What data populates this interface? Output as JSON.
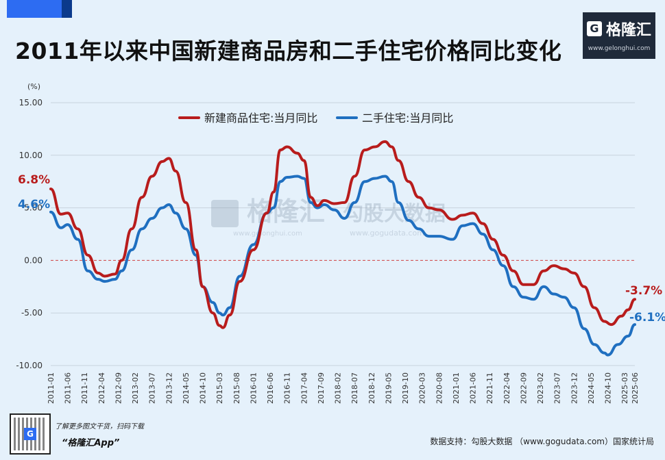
{
  "title": "2011年以来中国新建商品房和二手住宅价格同比变化",
  "logo": {
    "name": "格隆汇",
    "url": "www.gelonghui.com"
  },
  "footer": {
    "tagline": "了解更多图文干货，扫码下载",
    "app": "“格隆汇App”",
    "source": "数据支持：勾股大数据 （www.gogudata.com）国家统计局"
  },
  "watermark": {
    "brand": "格隆汇",
    "brand_url": "www.gelonghui.com",
    "data": "勾股大数据",
    "data_url": "www.gogudata.com"
  },
  "colors": {
    "new_home": "#b81c1c",
    "second_hand": "#1f6fc0",
    "zero_line": "#d04040"
  },
  "chart_data": {
    "type": "line",
    "unit_label": "(%)",
    "ylim": [
      -10,
      15
    ],
    "yticks": [
      "15.00",
      "10.00",
      "5.00",
      "0.00",
      "-5.00",
      "-10.00"
    ],
    "xtick_labels": [
      "2011-01",
      "2011-06",
      "2011-11",
      "2012-04",
      "2012-09",
      "2013-02",
      "2013-07",
      "2013-12",
      "2014-05",
      "2014-10",
      "2015-03",
      "2015-08",
      "2016-01",
      "2016-06",
      "2016-11",
      "2017-04",
      "2017-09",
      "2018-02",
      "2018-07",
      "2018-12",
      "2019-05",
      "2019-10",
      "2020-03",
      "2020-08",
      "2021-01",
      "2021-06",
      "2021-11",
      "2022-04",
      "2022-09",
      "2023-02",
      "2023-07",
      "2023-12",
      "2024-05",
      "2024-10",
      "2025-03",
      "2025-06"
    ],
    "legend": [
      "新建商品住宅:当月同比",
      "二手住宅:当月同比"
    ],
    "legend_position": "top-center",
    "grid": true,
    "annotations": {
      "new_start": "6.8%",
      "second_start": "4.6%",
      "new_end": "-3.7%",
      "second_end": "-6.1%"
    },
    "series": [
      {
        "name": "新建商品住宅:当月同比",
        "points": [
          [
            "2011-01",
            6.8
          ],
          [
            "2011-04",
            4.4
          ],
          [
            "2011-06",
            4.5
          ],
          [
            "2011-09",
            3.0
          ],
          [
            "2011-12",
            0.5
          ],
          [
            "2012-03",
            -1.2
          ],
          [
            "2012-05",
            -1.5
          ],
          [
            "2012-08",
            -1.3
          ],
          [
            "2012-10",
            0.0
          ],
          [
            "2013-01",
            3.0
          ],
          [
            "2013-04",
            6.0
          ],
          [
            "2013-07",
            8.0
          ],
          [
            "2013-10",
            9.4
          ],
          [
            "2013-12",
            9.7
          ],
          [
            "2014-02",
            8.5
          ],
          [
            "2014-05",
            5.5
          ],
          [
            "2014-08",
            1.0
          ],
          [
            "2014-10",
            -2.5
          ],
          [
            "2015-01",
            -5.0
          ],
          [
            "2015-03",
            -6.2
          ],
          [
            "2015-04",
            -6.4
          ],
          [
            "2015-06",
            -5.2
          ],
          [
            "2015-09",
            -2.0
          ],
          [
            "2016-01",
            1.0
          ],
          [
            "2016-05",
            4.5
          ],
          [
            "2016-07",
            6.5
          ],
          [
            "2016-09",
            10.5
          ],
          [
            "2016-11",
            10.8
          ],
          [
            "2017-02",
            10.2
          ],
          [
            "2017-04",
            9.5
          ],
          [
            "2017-06",
            6.0
          ],
          [
            "2017-08",
            5.2
          ],
          [
            "2017-10",
            5.7
          ],
          [
            "2018-01",
            5.4
          ],
          [
            "2018-04",
            5.5
          ],
          [
            "2018-07",
            8.0
          ],
          [
            "2018-10",
            10.5
          ],
          [
            "2019-01",
            10.8
          ],
          [
            "2019-04",
            11.3
          ],
          [
            "2019-06",
            10.8
          ],
          [
            "2019-08",
            9.5
          ],
          [
            "2019-11",
            7.5
          ],
          [
            "2020-02",
            6.0
          ],
          [
            "2020-05",
            5.0
          ],
          [
            "2020-08",
            4.8
          ],
          [
            "2020-12",
            3.9
          ],
          [
            "2021-03",
            4.3
          ],
          [
            "2021-06",
            4.5
          ],
          [
            "2021-09",
            3.5
          ],
          [
            "2021-12",
            2.0
          ],
          [
            "2022-03",
            0.5
          ],
          [
            "2022-06",
            -1.0
          ],
          [
            "2022-09",
            -2.3
          ],
          [
            "2022-12",
            -2.3
          ],
          [
            "2023-03",
            -1.0
          ],
          [
            "2023-06",
            -0.5
          ],
          [
            "2023-09",
            -0.8
          ],
          [
            "2023-12",
            -1.2
          ],
          [
            "2024-03",
            -2.5
          ],
          [
            "2024-06",
            -4.5
          ],
          [
            "2024-09",
            -5.8
          ],
          [
            "2024-11",
            -6.1
          ],
          [
            "2025-02",
            -5.3
          ],
          [
            "2025-04",
            -4.7
          ],
          [
            "2025-06",
            -3.7
          ]
        ]
      },
      {
        "name": "二手住宅:当月同比",
        "points": [
          [
            "2011-01",
            4.6
          ],
          [
            "2011-04",
            3.1
          ],
          [
            "2011-06",
            3.4
          ],
          [
            "2011-09",
            2.0
          ],
          [
            "2011-12",
            -1.0
          ],
          [
            "2012-03",
            -1.8
          ],
          [
            "2012-05",
            -2.0
          ],
          [
            "2012-08",
            -1.8
          ],
          [
            "2012-10",
            -1.0
          ],
          [
            "2013-01",
            1.0
          ],
          [
            "2013-04",
            3.0
          ],
          [
            "2013-07",
            4.0
          ],
          [
            "2013-10",
            5.0
          ],
          [
            "2013-12",
            5.3
          ],
          [
            "2014-02",
            4.5
          ],
          [
            "2014-05",
            3.0
          ],
          [
            "2014-08",
            0.5
          ],
          [
            "2014-10",
            -2.5
          ],
          [
            "2015-01",
            -4.0
          ],
          [
            "2015-03",
            -5.0
          ],
          [
            "2015-04",
            -5.2
          ],
          [
            "2015-06",
            -4.5
          ],
          [
            "2015-09",
            -1.5
          ],
          [
            "2016-01",
            1.5
          ],
          [
            "2016-05",
            4.5
          ],
          [
            "2016-07",
            5.0
          ],
          [
            "2016-09",
            7.5
          ],
          [
            "2016-11",
            7.9
          ],
          [
            "2017-02",
            8.0
          ],
          [
            "2017-04",
            7.8
          ],
          [
            "2017-06",
            5.5
          ],
          [
            "2017-08",
            5.0
          ],
          [
            "2017-10",
            5.3
          ],
          [
            "2018-01",
            4.8
          ],
          [
            "2018-04",
            4.0
          ],
          [
            "2018-07",
            5.5
          ],
          [
            "2018-10",
            7.5
          ],
          [
            "2019-01",
            7.8
          ],
          [
            "2019-04",
            8.0
          ],
          [
            "2019-06",
            7.5
          ],
          [
            "2019-08",
            5.5
          ],
          [
            "2019-11",
            3.8
          ],
          [
            "2020-02",
            3.0
          ],
          [
            "2020-05",
            2.3
          ],
          [
            "2020-08",
            2.3
          ],
          [
            "2020-12",
            2.0
          ],
          [
            "2021-03",
            3.3
          ],
          [
            "2021-06",
            3.5
          ],
          [
            "2021-09",
            2.5
          ],
          [
            "2021-12",
            1.0
          ],
          [
            "2022-03",
            -0.5
          ],
          [
            "2022-06",
            -2.5
          ],
          [
            "2022-09",
            -3.5
          ],
          [
            "2022-12",
            -3.7
          ],
          [
            "2023-03",
            -2.5
          ],
          [
            "2023-06",
            -3.2
          ],
          [
            "2023-09",
            -3.5
          ],
          [
            "2023-12",
            -4.5
          ],
          [
            "2024-03",
            -6.5
          ],
          [
            "2024-06",
            -8.0
          ],
          [
            "2024-09",
            -8.8
          ],
          [
            "2024-10",
            -9.0
          ],
          [
            "2025-01",
            -8.0
          ],
          [
            "2025-04",
            -7.2
          ],
          [
            "2025-06",
            -6.1
          ]
        ]
      }
    ]
  }
}
